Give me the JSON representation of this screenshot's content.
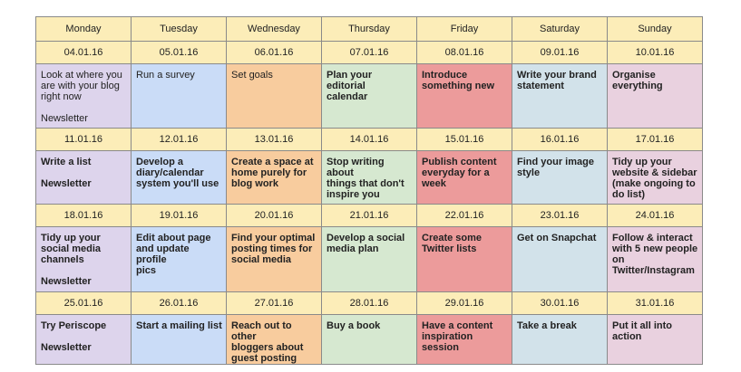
{
  "days": [
    "Monday",
    "Tuesday",
    "Wednesday",
    "Thursday",
    "Friday",
    "Saturday",
    "Sunday"
  ],
  "colors": {
    "header": "#fcedb8",
    "Monday": "#ddd4ec",
    "Tuesday": "#cadcf7",
    "Wednesday": "#f8cc9e",
    "Thursday": "#d6e8d0",
    "Friday": "#ec9b9b",
    "Saturday": "#d2e2ea",
    "Sunday": "#e9d1df"
  },
  "weeks": [
    {
      "dates": [
        "04.01.16",
        "05.01.16",
        "06.01.16",
        "07.01.16",
        "08.01.16",
        "09.01.16",
        "10.01.16"
      ],
      "tasks": [
        {
          "text": "Look at where you\nare with your blog\nright now",
          "note": "Newsletter",
          "bold": false
        },
        {
          "text": "Run a survey",
          "bold": false
        },
        {
          "text": "Set goals",
          "bold": false
        },
        {
          "text": "Plan your editorial\ncalendar",
          "bold": true
        },
        {
          "text": "Introduce\nsomething new",
          "bold": true
        },
        {
          "text": "Write your brand\nstatement",
          "bold": true
        },
        {
          "text": "Organise\neverything",
          "bold": true
        }
      ]
    },
    {
      "dates": [
        "11.01.16",
        "12.01.16",
        "13.01.16",
        "14.01.16",
        "15.01.16",
        "16.01.16",
        "17.01.16"
      ],
      "tasks": [
        {
          "text": "Write a list",
          "note": "Newsletter",
          "bold": true
        },
        {
          "text": "Develop a\ndiary/calendar\nsystem you'll use",
          "bold": true
        },
        {
          "text": "Create a space at\nhome purely for\nblog work",
          "bold": true
        },
        {
          "text": "Stop writing about\nthings that don't\ninspire you",
          "bold": true
        },
        {
          "text": "Publish content\neveryday for a\nweek",
          "bold": true
        },
        {
          "text": "Find your image\nstyle",
          "bold": true
        },
        {
          "text": "Tidy up your\nwebsite & sidebar\n(make ongoing to\ndo list)",
          "bold": true
        }
      ]
    },
    {
      "dates": [
        "18.01.16",
        "19.01.16",
        "20.01.16",
        "21.01.16",
        "22.01.16",
        "23.01.16",
        "24.01.16"
      ],
      "tasks": [
        {
          "text": "Tidy up your\nsocial media\nchannels",
          "note": "Newsletter",
          "bold": true
        },
        {
          "text": "Edit about page\nand update profile\npics",
          "bold": true
        },
        {
          "text": "Find your optimal\nposting times for\nsocial media",
          "bold": true
        },
        {
          "text": "Develop a social\nmedia plan",
          "bold": true
        },
        {
          "text": "Create some\nTwitter lists",
          "bold": true
        },
        {
          "text": "Get on Snapchat",
          "bold": true
        },
        {
          "text": "Follow & interact\nwith 5 new people\non\nTwitter/Instagram",
          "bold": true
        }
      ]
    },
    {
      "dates": [
        "25.01.16",
        "26.01.16",
        "27.01.16",
        "28.01.16",
        "29.01.16",
        "30.01.16",
        "31.01.16"
      ],
      "tasks": [
        {
          "text": "Try Periscope",
          "note": "Newsletter",
          "bold": true
        },
        {
          "text": "Start a mailing list",
          "bold": true
        },
        {
          "text": "Reach out to other\nbloggers about\nguest posting",
          "bold": true
        },
        {
          "text": "Buy a book",
          "bold": true
        },
        {
          "text": "Have a content\ninspiration\nsession",
          "bold": true
        },
        {
          "text": "Take a break",
          "bold": true
        },
        {
          "text": "Put it all into\naction",
          "bold": true
        }
      ]
    }
  ]
}
